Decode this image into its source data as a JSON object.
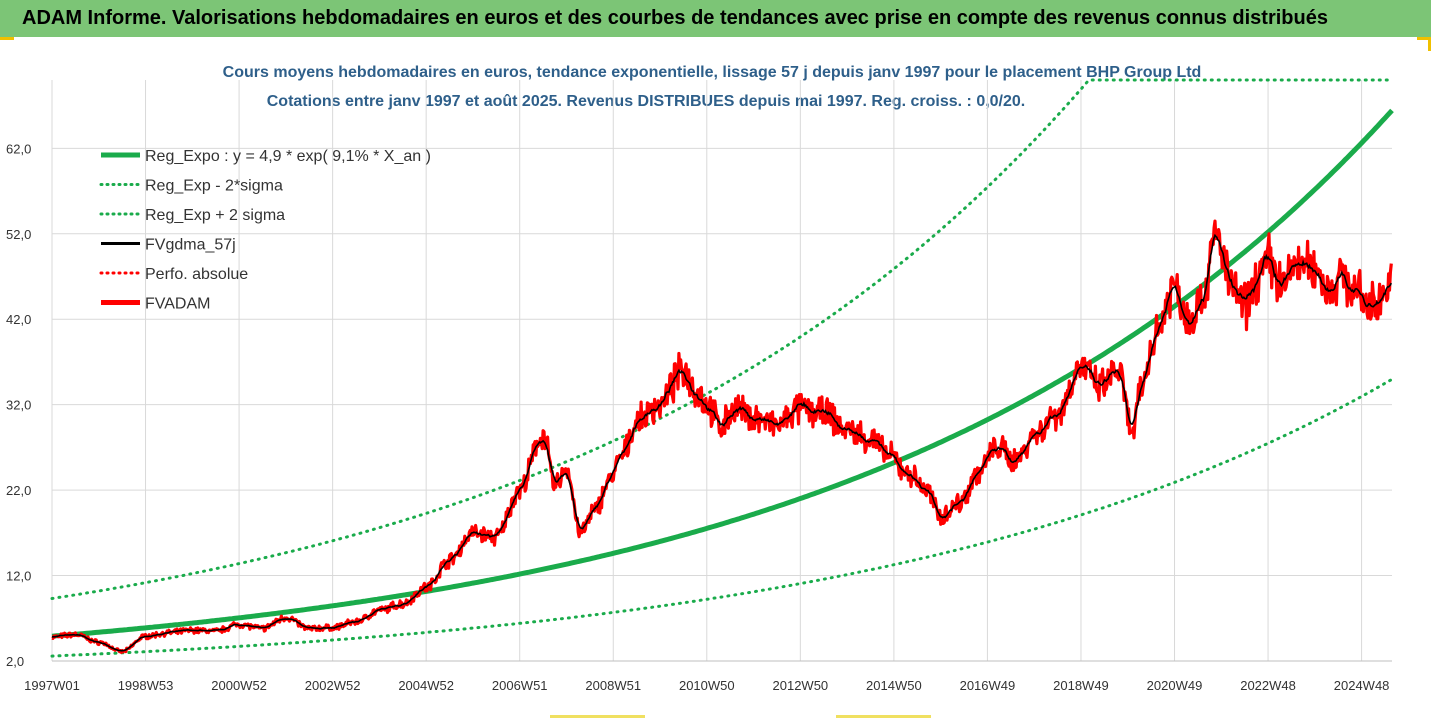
{
  "banner": {
    "title": "ADAM Informe. Valorisations hebdomadaires en euros et des courbes de tendances avec prise en compte des revenus connus distribués"
  },
  "chart_data": {
    "type": "line",
    "title": "Cours moyens hebdomadaires en euros, tendance exponentielle, lissage 57 j depuis janv 1997 pour le placement BHP Group Ltd",
    "subtitle": "Cotations entre janv 1997 et août 2025. Revenus DISTRIBUES depuis mai 1997. Reg. croiss. : 0,0/20.",
    "xlabel": "",
    "ylabel": "",
    "ylim": [
      2,
      70
    ],
    "yticks": [
      "2,0",
      "12,0",
      "22,0",
      "32,0",
      "42,0",
      "52,0",
      "62,0"
    ],
    "ytick_values": [
      2,
      12,
      22,
      32,
      42,
      52,
      62
    ],
    "xlim": [
      1997.0,
      2025.65
    ],
    "xticks": [
      "1997W01",
      "1998W53",
      "2000W52",
      "2002W52",
      "2004W52",
      "2006W51",
      "2008W51",
      "2010W50",
      "2012W50",
      "2014W50",
      "2016W49",
      "2018W49",
      "2020W49",
      "2022W48",
      "2024W48"
    ],
    "xtick_years": [
      1997.0,
      1999.0,
      2001.0,
      2003.0,
      2005.0,
      2007.0,
      2009.0,
      2011.0,
      2013.0,
      2015.0,
      2017.0,
      2019.0,
      2021.0,
      2023.0,
      2025.0
    ],
    "grid": true,
    "legend_position": "top-left",
    "regression": {
      "a": 4.9,
      "rate": 0.091,
      "sigma_factor": 1.9
    },
    "series": [
      {
        "name": "Reg_Expo : y = 4,9 * exp( 9,1% *  X_an )",
        "color": "#1aab4b",
        "style": "solid-thick",
        "kind": "trend"
      },
      {
        "name": "Reg_Exp - 2*sigma",
        "color": "#1aab4b",
        "style": "dotted",
        "kind": "lower"
      },
      {
        "name": "Reg_Exp + 2 sigma",
        "color": "#1aab4b",
        "style": "dotted",
        "kind": "upper"
      },
      {
        "name": "FVgdma_57j",
        "color": "#000000",
        "style": "solid",
        "kind": "smooth"
      },
      {
        "name": "Perfo. absolue",
        "color": "#ff0000",
        "style": "dotted",
        "kind": "perf"
      },
      {
        "name": "FVADAM",
        "color": "#ff0000",
        "style": "solid-thick",
        "kind": "price"
      }
    ],
    "price_points": {
      "x": [
        1997.0,
        1997.5,
        1998.0,
        1998.5,
        1999.0,
        1999.5,
        2000.0,
        2000.5,
        2001.0,
        2001.5,
        2002.0,
        2002.5,
        2003.0,
        2003.5,
        2004.0,
        2004.5,
        2005.0,
        2005.5,
        2006.0,
        2006.5,
        2007.0,
        2007.5,
        2007.75,
        2008.0,
        2008.3,
        2008.6,
        2008.9,
        2009.2,
        2009.5,
        2010.0,
        2010.5,
        2010.8,
        2011.0,
        2011.3,
        2011.6,
        2012.0,
        2012.5,
        2013.0,
        2013.5,
        2014.0,
        2014.5,
        2014.9,
        2015.3,
        2015.7,
        2016.0,
        2016.4,
        2016.8,
        2017.2,
        2017.6,
        2018.0,
        2018.5,
        2019.0,
        2019.4,
        2019.8,
        2020.1,
        2020.3,
        2020.6,
        2021.0,
        2021.3,
        2021.6,
        2021.9,
        2022.2,
        2022.5,
        2022.8,
        2023.0,
        2023.3,
        2023.6,
        2024.0,
        2024.3,
        2024.6,
        2024.9,
        2025.2,
        2025.45,
        2025.65
      ],
      "y": [
        4.8,
        5.1,
        4.2,
        3.1,
        4.9,
        5.3,
        5.6,
        5.5,
        6.3,
        5.8,
        7.1,
        5.8,
        5.9,
        6.6,
        7.9,
        8.7,
        10.6,
        13.8,
        17.0,
        16.5,
        22.0,
        28.5,
        22.5,
        24.5,
        17.0,
        19.5,
        23.0,
        26.0,
        30.0,
        32.0,
        36.0,
        33.5,
        32.0,
        29.5,
        31.5,
        30.5,
        29.5,
        31.5,
        31.0,
        29.0,
        28.0,
        26.0,
        24.0,
        22.0,
        19.0,
        20.5,
        24.0,
        27.0,
        25.5,
        28.5,
        31.0,
        36.5,
        34.0,
        36.0,
        28.5,
        34.0,
        40.5,
        46.0,
        42.0,
        44.5,
        52.0,
        46.0,
        43.5,
        47.0,
        49.0,
        46.0,
        48.5,
        48.0,
        45.5,
        47.0,
        45.0,
        43.5,
        45.0,
        46.0
      ]
    }
  }
}
